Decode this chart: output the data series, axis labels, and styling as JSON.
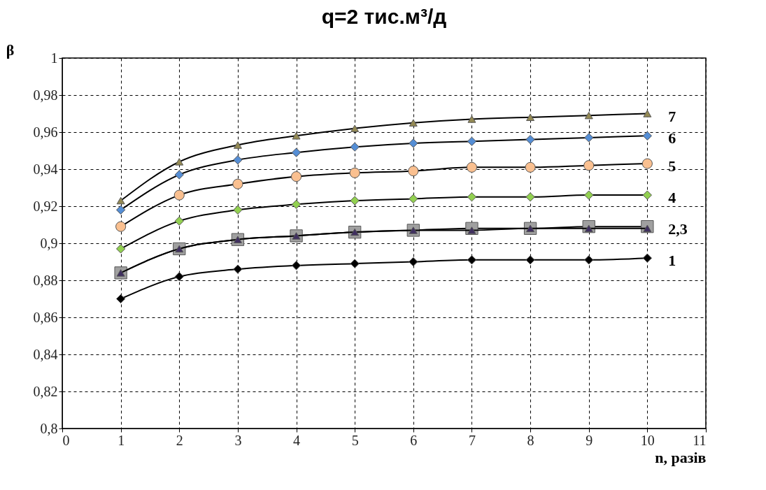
{
  "chart_data": {
    "type": "line",
    "title": "q=2 тис.м³/д",
    "xlabel": "n, разів",
    "ylabel": "β",
    "x": [
      1,
      2,
      3,
      4,
      5,
      6,
      7,
      8,
      9,
      10
    ],
    "xlim": [
      0,
      11
    ],
    "xticks": [
      0,
      1,
      2,
      3,
      4,
      5,
      6,
      7,
      8,
      9,
      10,
      11
    ],
    "ylim": [
      0.8,
      1
    ],
    "yticks": [
      {
        "value": 0.8,
        "label": "0,8"
      },
      {
        "value": 0.82,
        "label": "0,82"
      },
      {
        "value": 0.84,
        "label": "0,84"
      },
      {
        "value": 0.86,
        "label": "0,86"
      },
      {
        "value": 0.88,
        "label": "0,88"
      },
      {
        "value": 0.9,
        "label": "0,9"
      },
      {
        "value": 0.92,
        "label": "0,92"
      },
      {
        "value": 0.94,
        "label": "0,94"
      },
      {
        "value": 0.96,
        "label": "0,96"
      },
      {
        "value": 0.98,
        "label": "0,98"
      },
      {
        "value": 1,
        "label": "1"
      }
    ],
    "grid": true,
    "line_style": "solid",
    "series": [
      {
        "name": "1",
        "color": "#000000",
        "marker": "diamond",
        "values": [
          0.87,
          0.882,
          0.886,
          0.888,
          0.889,
          0.89,
          0.891,
          0.891,
          0.891,
          0.892
        ]
      },
      {
        "name": "2,3",
        "color": "#a0a0a0",
        "marker": "square",
        "values": [
          0.884,
          0.897,
          0.902,
          0.904,
          0.906,
          0.907,
          0.908,
          0.908,
          0.909,
          0.909
        ]
      },
      {
        "color": "#403060",
        "marker": "triangle",
        "values": [
          0.884,
          0.897,
          0.902,
          0.904,
          0.906,
          0.907,
          0.907,
          0.908,
          0.908,
          0.908
        ]
      },
      {
        "name": "4",
        "color": "#92d050",
        "marker": "diamond",
        "values": [
          0.897,
          0.912,
          0.918,
          0.921,
          0.923,
          0.924,
          0.925,
          0.925,
          0.926,
          0.926
        ]
      },
      {
        "name": "5",
        "color": "#fac090",
        "marker": "circle",
        "values": [
          0.909,
          0.926,
          0.932,
          0.936,
          0.938,
          0.939,
          0.941,
          0.941,
          0.942,
          0.943
        ]
      },
      {
        "name": "6",
        "color": "#558ed5",
        "marker": "diamond",
        "values": [
          0.918,
          0.937,
          0.945,
          0.949,
          0.952,
          0.954,
          0.955,
          0.956,
          0.957,
          0.958
        ]
      },
      {
        "name": "7",
        "color": "#948a54",
        "marker": "triangle",
        "values": [
          0.923,
          0.944,
          0.953,
          0.958,
          0.962,
          0.965,
          0.967,
          0.968,
          0.969,
          0.97
        ]
      }
    ]
  }
}
